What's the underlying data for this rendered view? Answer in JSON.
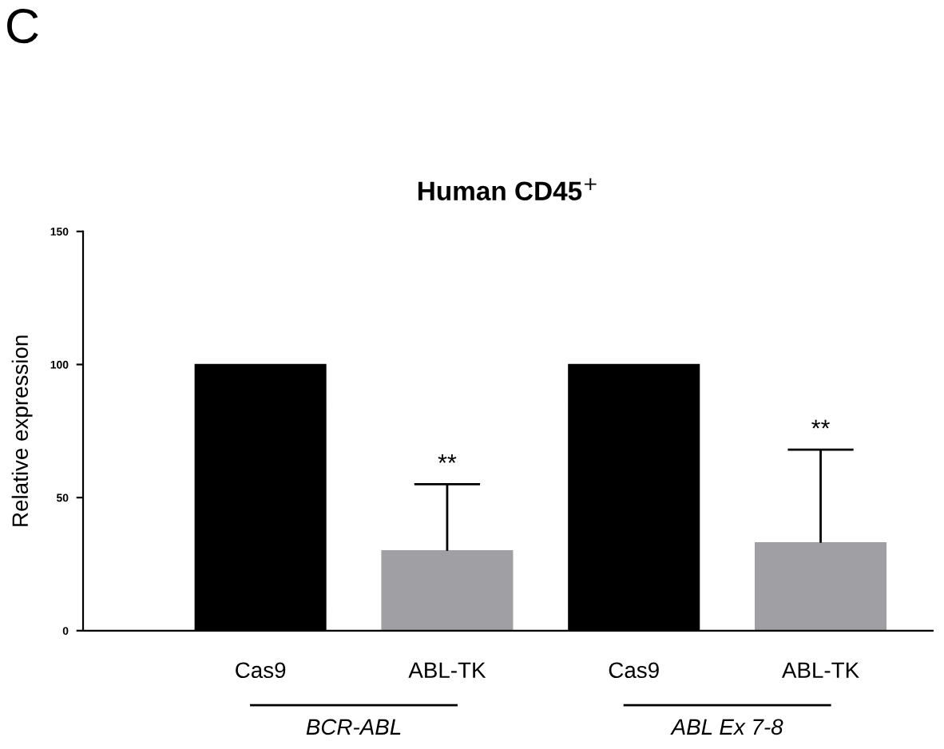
{
  "chart_data": {
    "type": "bar",
    "title": "Human CD45$^{+}$",
    "ylabel": "Relative expression",
    "categories": [
      "Cas9",
      "ABL-TK",
      "Cas9",
      "ABL-TK"
    ],
    "values": [
      100,
      30,
      100,
      33
    ],
    "colors": [
      "#000000",
      "#a0a0a4",
      "#000000",
      "#a0a0a4"
    ],
    "errors": [
      null,
      [
        30,
        55
      ],
      null,
      [
        33,
        68
      ]
    ],
    "annotations": [
      "C",
      "BCR-ABL",
      "ABL Ex 7-8",
      "**",
      "**"
    ],
    "ylim": [
      0,
      150
    ],
    "yticks": [
      0,
      50,
      100,
      150
    ],
    "grid": false
  }
}
